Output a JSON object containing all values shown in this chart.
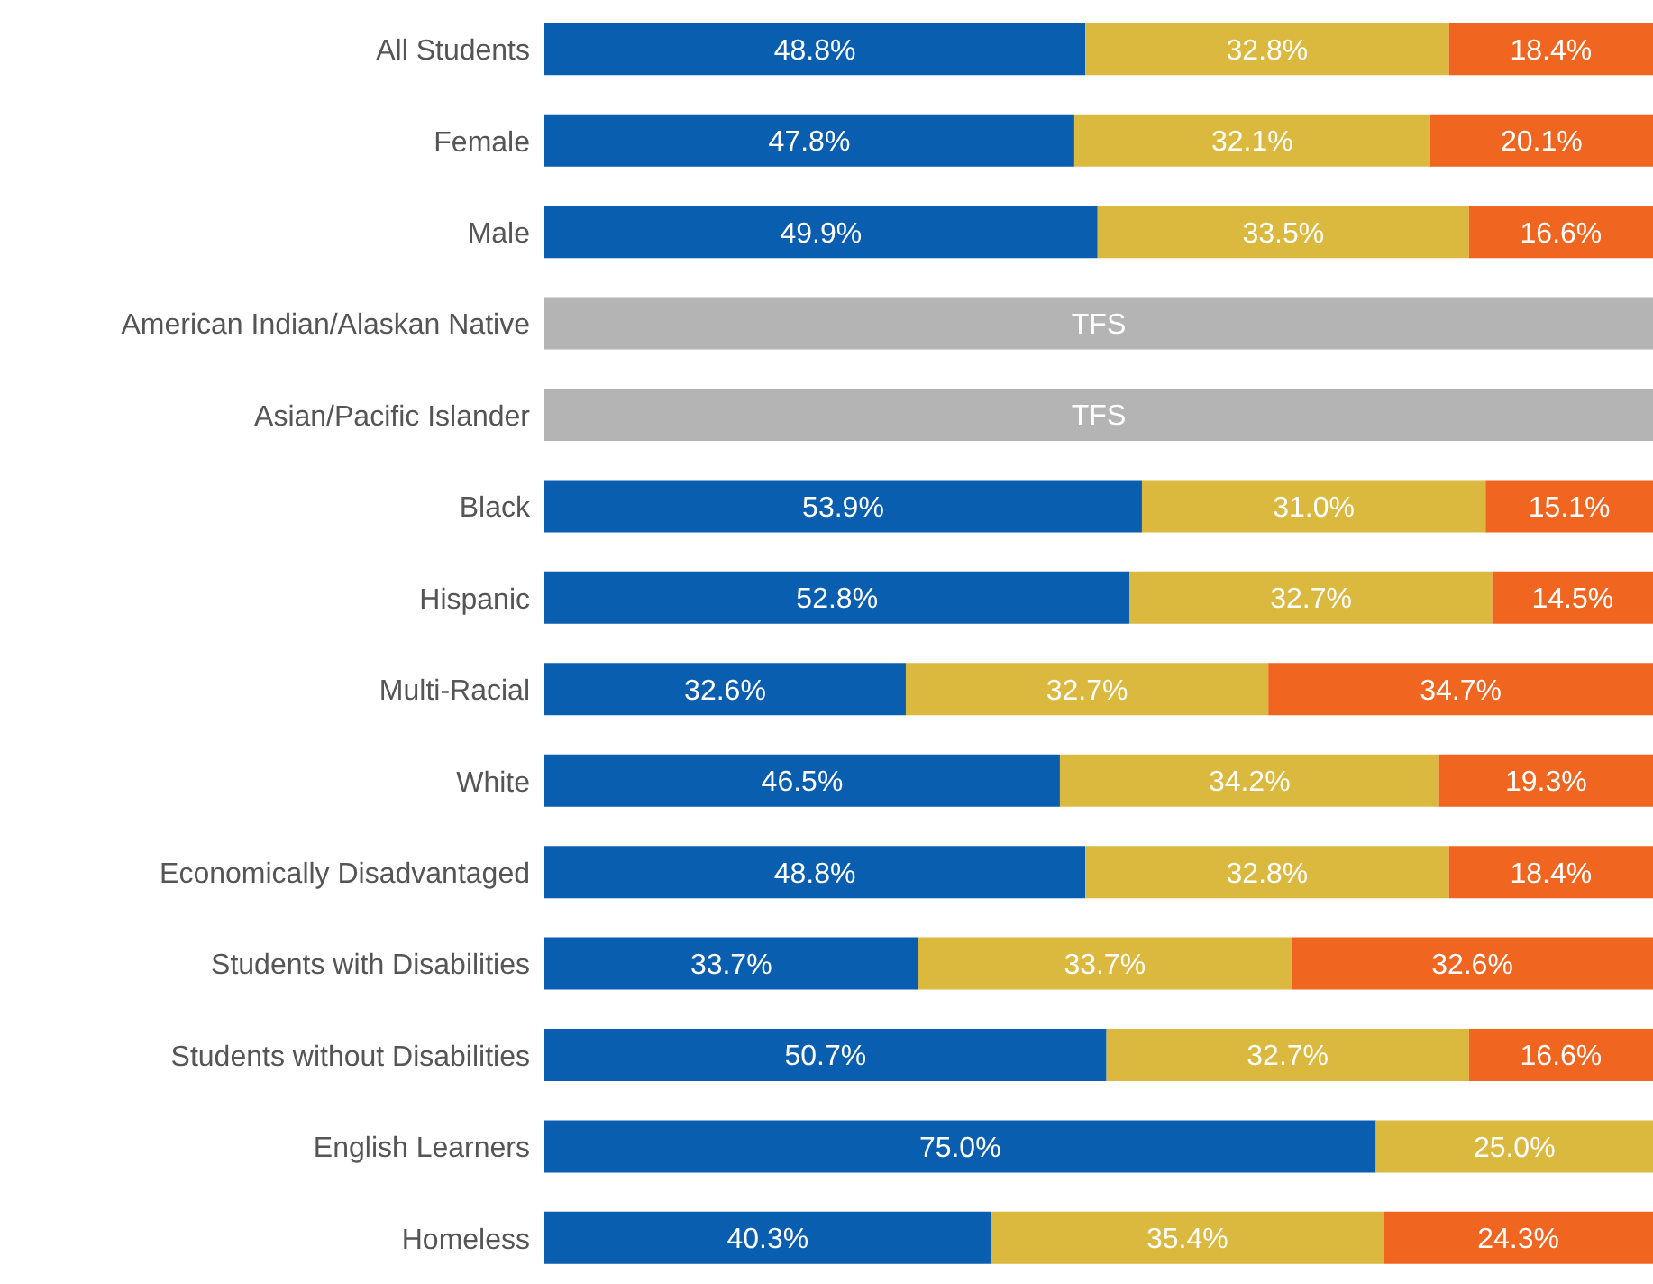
{
  "chart_data": {
    "type": "bar",
    "orientation": "horizontal",
    "stacked": true,
    "tick_labels": "y",
    "legend": false,
    "grid": false,
    "xlim": [
      0,
      100
    ],
    "categories": [
      "All Students",
      "Female",
      "Male",
      "American Indian/Alaskan Native",
      "Asian/Pacific Islander",
      "Black",
      "Hispanic",
      "Multi-Racial",
      "White",
      "Economically Disadvantaged",
      "Students with Disabilities",
      "Students without Disabilities",
      "English Learners",
      "Homeless"
    ],
    "series": [
      {
        "color": "#0a5eb0",
        "values": [
          48.8,
          47.8,
          49.9,
          null,
          null,
          53.9,
          52.8,
          32.6,
          46.5,
          48.8,
          33.7,
          50.7,
          75.0,
          40.3
        ],
        "value_labels": [
          "48.8%",
          "47.8%",
          "49.9%",
          null,
          null,
          "53.9%",
          "52.8%",
          "32.6%",
          "46.5%",
          "48.8%",
          "33.7%",
          "50.7%",
          "75.0%",
          "40.3%"
        ]
      },
      {
        "color": "#dbb83e",
        "values": [
          32.8,
          32.1,
          33.5,
          null,
          null,
          31.0,
          32.7,
          32.7,
          34.2,
          32.8,
          33.7,
          32.7,
          25.0,
          35.4
        ],
        "value_labels": [
          "32.8%",
          "32.1%",
          "33.5%",
          null,
          null,
          "31.0%",
          "32.7%",
          "32.7%",
          "34.2%",
          "32.8%",
          "33.7%",
          "32.7%",
          "25.0%",
          "35.4%"
        ]
      },
      {
        "color": "#f0651f",
        "values": [
          18.4,
          20.1,
          16.6,
          null,
          null,
          15.1,
          14.5,
          34.7,
          19.3,
          18.4,
          32.6,
          16.6,
          null,
          24.3
        ],
        "value_labels": [
          "18.4%",
          "20.1%",
          "16.6%",
          null,
          null,
          "15.1%",
          "14.5%",
          "34.7%",
          "19.3%",
          "18.4%",
          "32.6%",
          "16.6%",
          null,
          "24.3%"
        ]
      },
      {
        "color": "#b4b4b4",
        "values": [
          null,
          null,
          null,
          100,
          100,
          null,
          null,
          null,
          null,
          null,
          null,
          null,
          null,
          null
        ],
        "value_labels": [
          null,
          null,
          null,
          "TFS",
          "TFS",
          null,
          null,
          null,
          null,
          null,
          null,
          null,
          null,
          null
        ]
      }
    ]
  }
}
